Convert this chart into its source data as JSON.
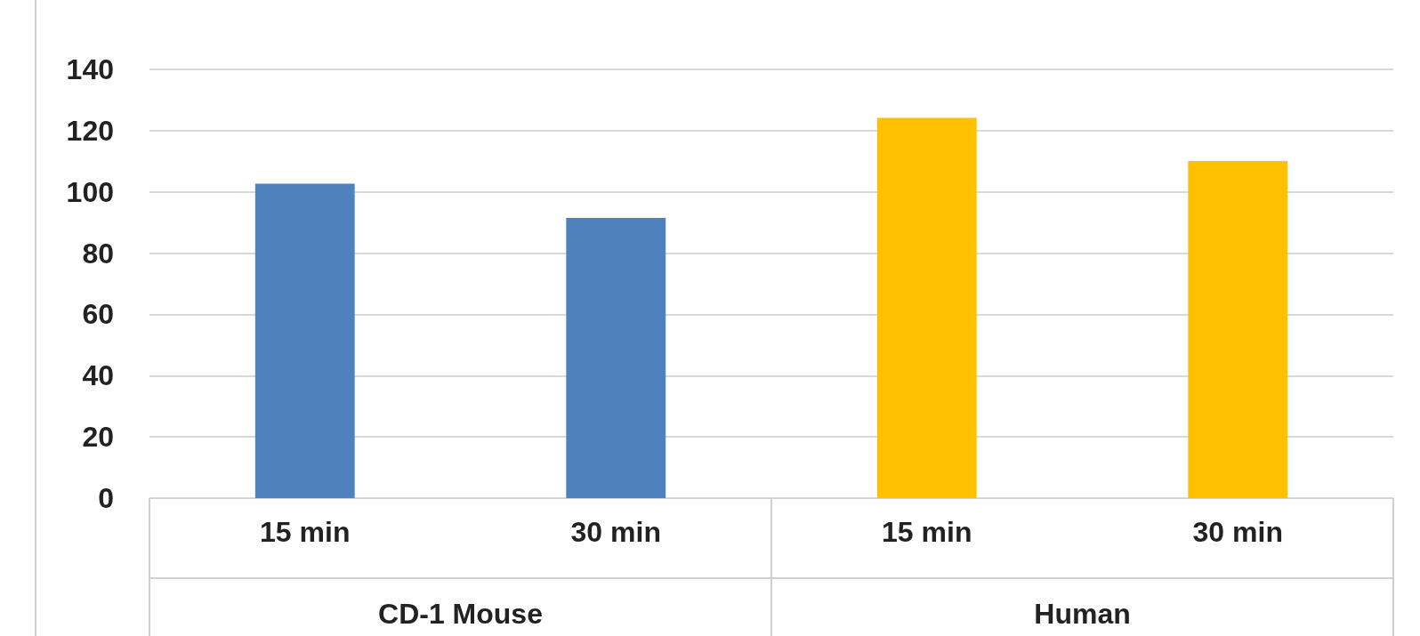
{
  "chart_data": {
    "type": "bar",
    "categories": [
      "15 min",
      "30 min",
      "15 min",
      "30 min"
    ],
    "values": [
      102.7,
      91.5,
      124.2,
      110.1
    ],
    "colors": [
      "#4f81bd",
      "#4f81bd",
      "#ffc000",
      "#ffc000"
    ],
    "annotations": [
      "CD-1 Mouse",
      "Human"
    ],
    "ylim": [
      0,
      140
    ],
    "yticks": [
      0,
      20,
      40,
      60,
      80,
      100,
      120,
      140
    ],
    "grid": "y"
  }
}
